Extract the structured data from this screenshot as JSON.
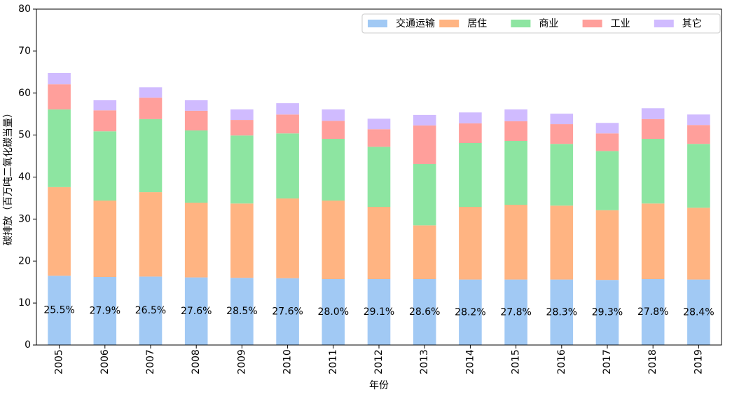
{
  "chart_data": {
    "type": "stacked-bar",
    "x_label": "年份",
    "y_label": "碳排放（百万吨二氧化碳当量）",
    "categories": [
      "2005",
      "2006",
      "2007",
      "2008",
      "2009",
      "2010",
      "2011",
      "2012",
      "2013",
      "2014",
      "2015",
      "2016",
      "2017",
      "2018",
      "2019"
    ],
    "series": [
      {
        "name": "交通运输",
        "color": "#a1c9f4",
        "values": [
          16.5,
          16.2,
          16.3,
          16.1,
          16.0,
          15.9,
          15.7,
          15.7,
          15.7,
          15.6,
          15.6,
          15.6,
          15.5,
          15.7,
          15.6
        ]
      },
      {
        "name": "居住",
        "color": "#ffb482",
        "values": [
          21.1,
          18.2,
          20.1,
          17.8,
          17.7,
          19.0,
          18.7,
          17.2,
          12.8,
          17.3,
          17.8,
          17.6,
          16.6,
          18.0,
          17.1
        ]
      },
      {
        "name": "商业",
        "color": "#8de5a1",
        "values": [
          18.5,
          16.5,
          17.4,
          17.2,
          16.2,
          15.5,
          14.7,
          14.3,
          14.6,
          15.2,
          15.2,
          14.7,
          14.1,
          15.4,
          15.2
        ]
      },
      {
        "name": "工业",
        "color": "#ff9f9b",
        "values": [
          6.0,
          5.0,
          5.1,
          4.7,
          3.7,
          4.5,
          4.3,
          4.2,
          9.2,
          4.7,
          4.7,
          4.7,
          4.2,
          4.7,
          4.5
        ]
      },
      {
        "name": "其它",
        "color": "#d0bbff",
        "values": [
          2.7,
          2.4,
          2.5,
          2.5,
          2.5,
          2.7,
          2.7,
          2.5,
          2.5,
          2.6,
          2.8,
          2.5,
          2.5,
          2.6,
          2.5
        ]
      }
    ],
    "share_labels": [
      "25.5%",
      "27.9%",
      "26.5%",
      "27.6%",
      "28.5%",
      "27.6%",
      "28.0%",
      "29.1%",
      "28.6%",
      "28.2%",
      "27.8%",
      "28.3%",
      "29.3%",
      "27.8%",
      "28.4%"
    ],
    "ylim": [
      0,
      80
    ],
    "yticks": [
      0,
      10,
      20,
      30,
      40,
      50,
      60,
      70,
      80
    ],
    "legend": "upper-right"
  }
}
